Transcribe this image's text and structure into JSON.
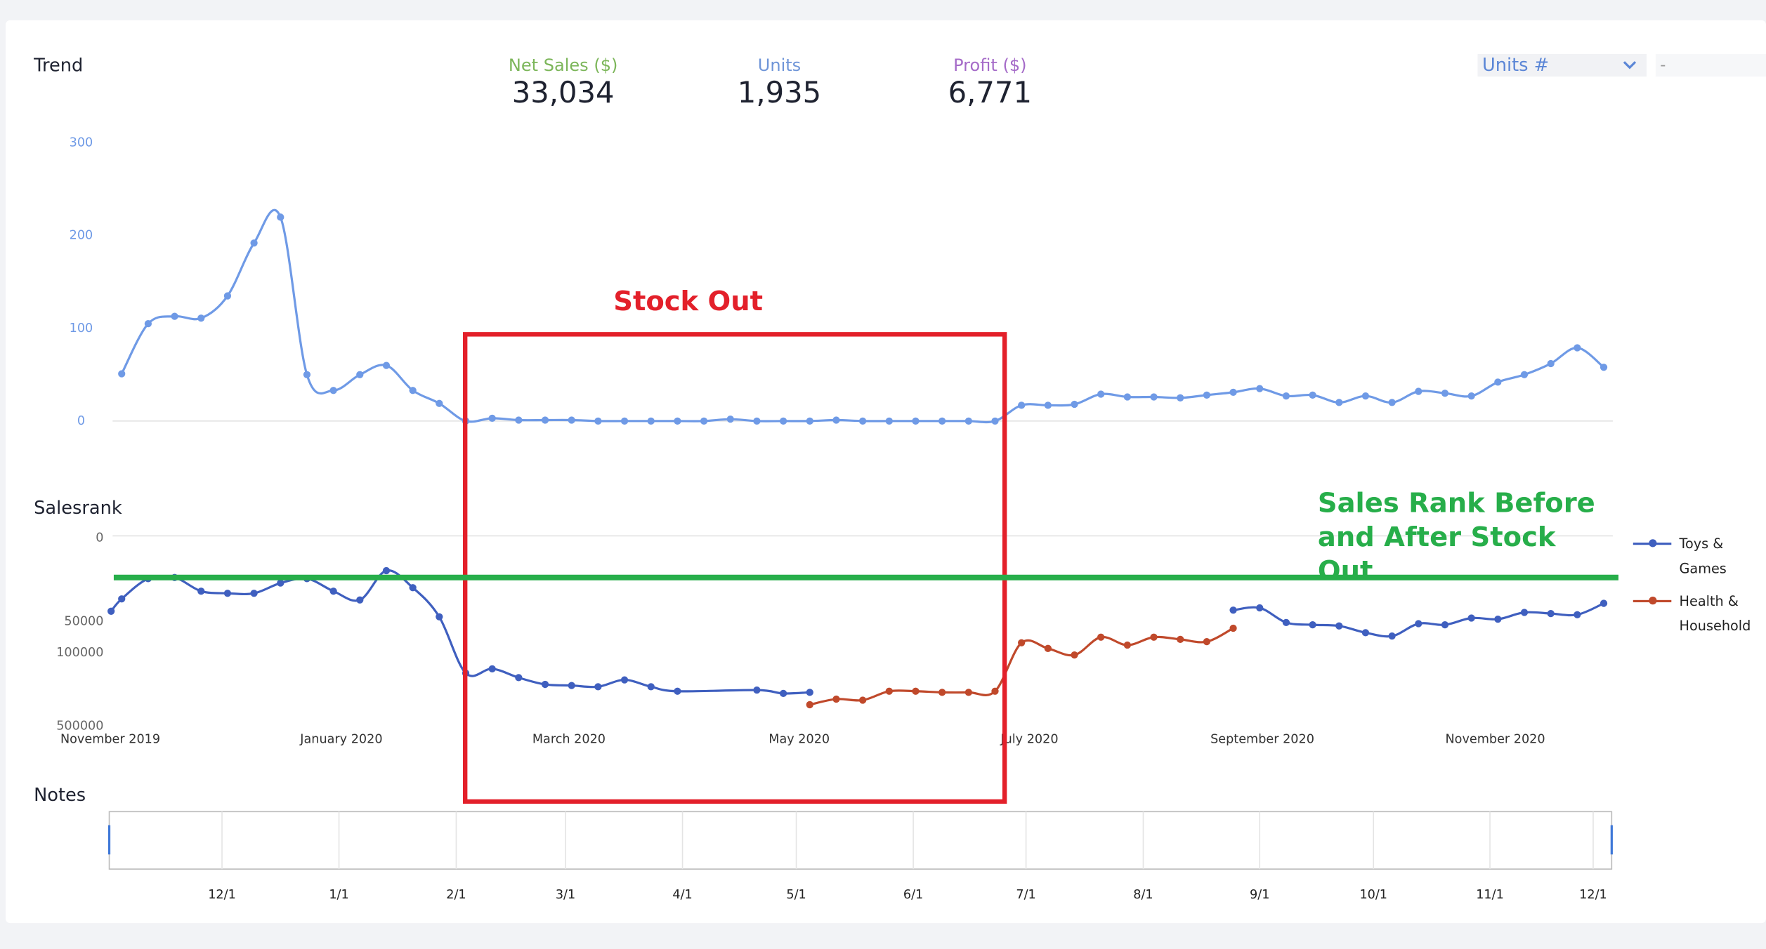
{
  "header": {
    "metrics": [
      {
        "label": "Net Sales ($)",
        "value": "33,034",
        "color": "#7cb65a"
      },
      {
        "label": "Units",
        "value": "1,935",
        "color": "#6f95d8"
      },
      {
        "label": "Profit ($)",
        "value": "6,771",
        "color": "#a56bc8"
      }
    ],
    "selector": "Units #",
    "selector_secondary": "-"
  },
  "annotations": {
    "stock_out": "Stock Out",
    "sales_rank_note": "Sales Rank Before and After Stock Out"
  },
  "chart_data": [
    {
      "type": "line",
      "title": "Trend",
      "smooth": true,
      "xlim": [
        -0.47,
        56.3
      ],
      "ylim": [
        0,
        300
      ],
      "yticks": [
        0,
        100,
        200,
        300
      ],
      "x": [
        0,
        1,
        2,
        3,
        4,
        5,
        6,
        7,
        8,
        9,
        10,
        11,
        12,
        13,
        14,
        15,
        16,
        17,
        18,
        19,
        20,
        21,
        22,
        23,
        24,
        25,
        26,
        27,
        28,
        29,
        30,
        31,
        32,
        33,
        34,
        35,
        36,
        37,
        38,
        39,
        40,
        41,
        42,
        43,
        44,
        45,
        46,
        47,
        48,
        49,
        50,
        51,
        52,
        53,
        54,
        55,
        56
      ],
      "series": [
        {
          "name": "Units",
          "color": "#6f9ae6",
          "values": [
            51,
            105,
            113,
            111,
            135,
            192,
            220,
            50,
            33,
            50,
            60,
            33,
            19,
            0,
            3,
            1,
            1,
            1,
            0,
            0,
            0,
            0,
            0,
            2,
            0,
            0,
            0,
            1,
            0,
            0,
            0,
            0,
            0,
            0,
            17,
            17,
            18,
            29,
            26,
            26,
            25,
            28,
            31,
            35,
            27,
            28,
            20,
            27,
            20,
            32,
            30,
            27,
            42,
            50,
            62,
            79,
            58
          ]
        }
      ]
    },
    {
      "type": "line",
      "title": "Salesrank",
      "smooth": true,
      "ylog": true,
      "xlim": [
        -0.47,
        56.3
      ],
      "ylim": [
        500000,
        8000
      ],
      "yticks": [
        {
          "value": 8000,
          "label": "0"
        },
        50000,
        100000,
        500000
      ],
      "xticks": [
        {
          "value": -0.43,
          "label": "November 2019"
        },
        {
          "value": 8.3,
          "label": "January 2020"
        },
        {
          "value": 16.9,
          "label": "March 2020"
        },
        {
          "value": 25.6,
          "label": "May 2020"
        },
        {
          "value": 34.3,
          "label": "July 2020"
        },
        {
          "value": 43.1,
          "label": "September 2020"
        },
        {
          "value": 51.9,
          "label": "November 2020"
        }
      ],
      "legend": "right",
      "series": [
        {
          "name": "Toys & Games",
          "color": "#3f5fbf",
          "x": [
            -0.4,
            0,
            1,
            2,
            3,
            4,
            5,
            6,
            7,
            8,
            9,
            10,
            11,
            12,
            13,
            14,
            15,
            16,
            17,
            18,
            19,
            20,
            21,
            24,
            25,
            26,
            null,
            42,
            43,
            44,
            45,
            46,
            47,
            48,
            49,
            50,
            51,
            52,
            53,
            54,
            55,
            56
          ],
          "values": [
            42000,
            32000,
            20500,
            20000,
            27000,
            28300,
            28300,
            22600,
            20500,
            27000,
            32800,
            17200,
            25000,
            47500,
            164000,
            149000,
            181000,
            210000,
            215000,
            221000,
            190000,
            221000,
            244000,
            238000,
            256000,
            250000,
            null,
            41000,
            39000,
            53800,
            56600,
            58000,
            67300,
            72500,
            55200,
            56600,
            48800,
            50000,
            43100,
            44200,
            45300,
            35300
          ]
        },
        {
          "name": "Health & Household",
          "color": "#c0492b",
          "x": [
            26,
            27,
            28,
            29,
            30,
            31,
            32,
            33,
            34,
            35,
            36,
            37,
            38,
            39,
            40,
            41,
            42
          ],
          "values": [
            328000,
            290000,
            297000,
            244000,
            244000,
            250000,
            250000,
            244000,
            84100,
            95200,
            110000,
            74300,
            88400,
            74300,
            78000,
            82000,
            61000
          ]
        }
      ]
    },
    {
      "type": "timeline",
      "title": "Notes",
      "xlim": [
        -0.47,
        56.3
      ],
      "xticks": [
        {
          "value": 3.79,
          "label": "12/1"
        },
        {
          "value": 8.21,
          "label": "1/1"
        },
        {
          "value": 12.64,
          "label": "2/1"
        },
        {
          "value": 16.77,
          "label": "3/1"
        },
        {
          "value": 21.19,
          "label": "4/1"
        },
        {
          "value": 25.49,
          "label": "5/1"
        },
        {
          "value": 29.91,
          "label": "6/1"
        },
        {
          "value": 34.17,
          "label": "7/1"
        },
        {
          "value": 38.6,
          "label": "8/1"
        },
        {
          "value": 43.0,
          "label": "9/1"
        },
        {
          "value": 47.3,
          "label": "10/1"
        },
        {
          "value": 51.7,
          "label": "11/1"
        },
        {
          "value": 55.6,
          "label": "12/1"
        }
      ]
    }
  ]
}
